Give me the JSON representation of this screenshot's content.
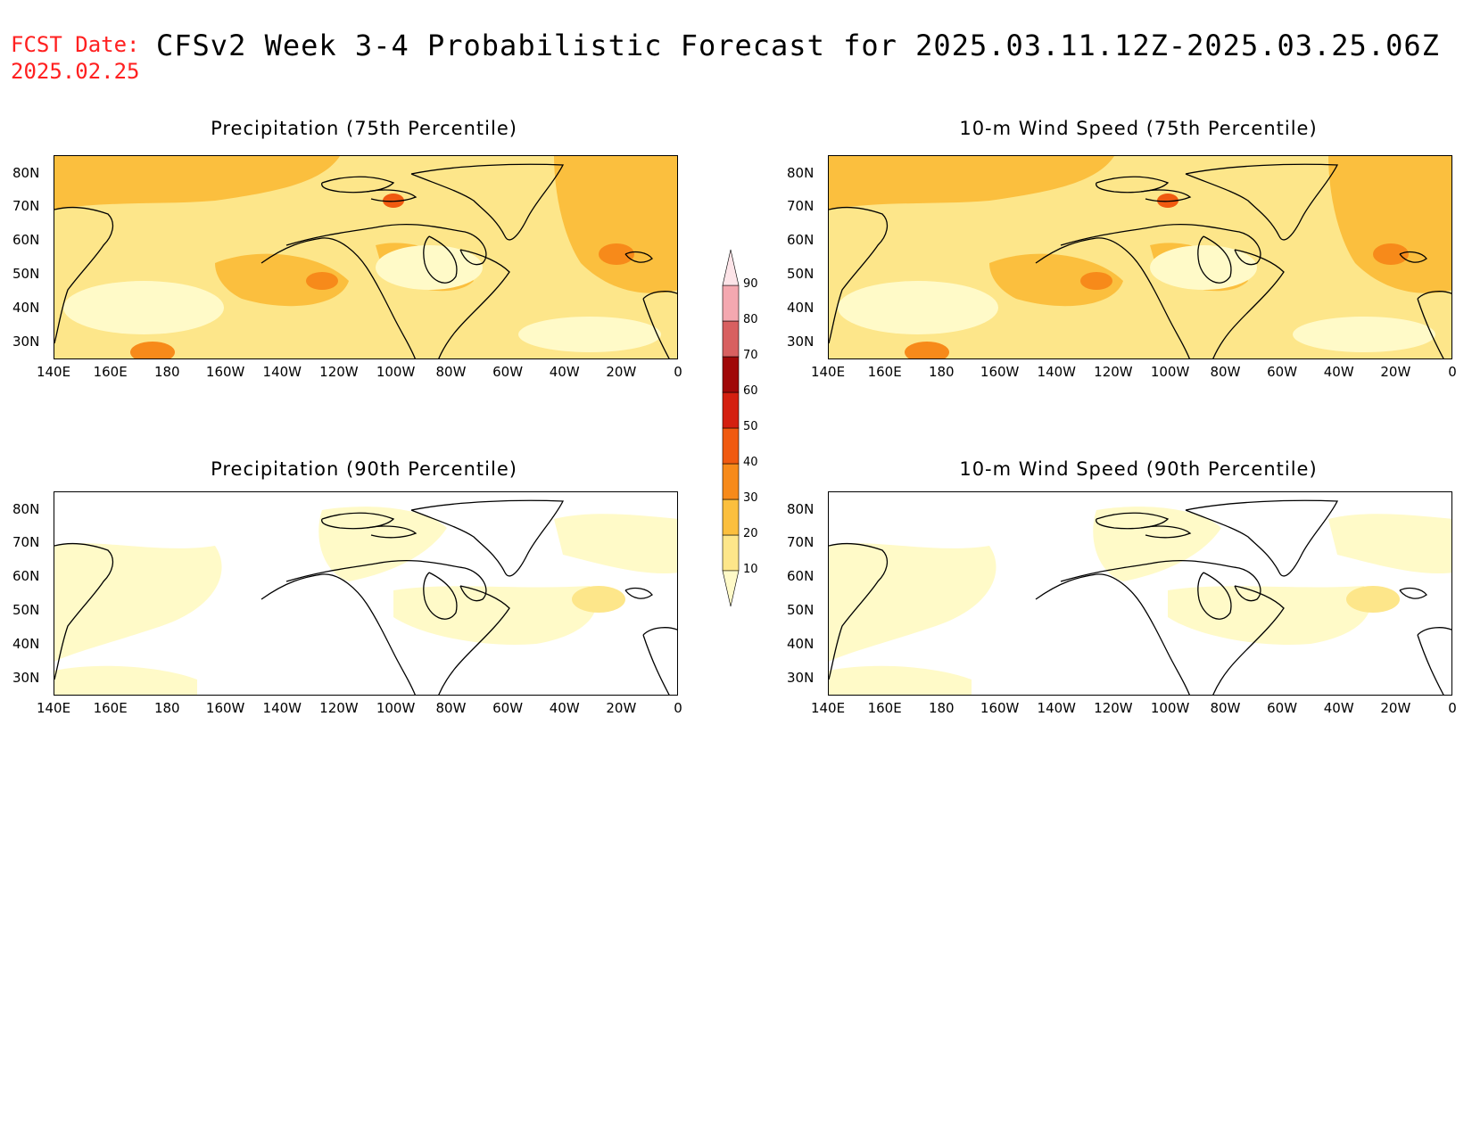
{
  "header": {
    "fcst_label": "FCST Date:",
    "fcst_date": "2025.02.25",
    "title": "CFSv2 Week 3-4 Probabilistic Forecast for 2025.03.11.12Z-2025.03.25.06Z"
  },
  "axes": {
    "x_ticks": [
      "140E",
      "160E",
      "180",
      "160W",
      "140W",
      "120W",
      "100W",
      "80W",
      "60W",
      "40W",
      "20W",
      "0"
    ],
    "y_ticks": [
      "80N",
      "70N",
      "60N",
      "50N",
      "40N",
      "30N"
    ]
  },
  "panels": [
    {
      "title": "Precipitation (75th Percentile)",
      "intensity": "high"
    },
    {
      "title": "10-m Wind Speed (75th Percentile)",
      "intensity": "high"
    },
    {
      "title": "Precipitation (90th Percentile)",
      "intensity": "low"
    },
    {
      "title": "10-m Wind Speed (90th Percentile)",
      "intensity": "low"
    }
  ],
  "colorbar": {
    "levels": [
      "10",
      "20",
      "30",
      "40",
      "50",
      "60",
      "70",
      "80",
      "90"
    ],
    "colors": [
      "#fffac8",
      "#fde68a",
      "#fbbf3e",
      "#f78a1a",
      "#f05a10",
      "#d42010",
      "#a00808",
      "#d86060",
      "#f4a8b0",
      "#fde4e8"
    ]
  }
}
